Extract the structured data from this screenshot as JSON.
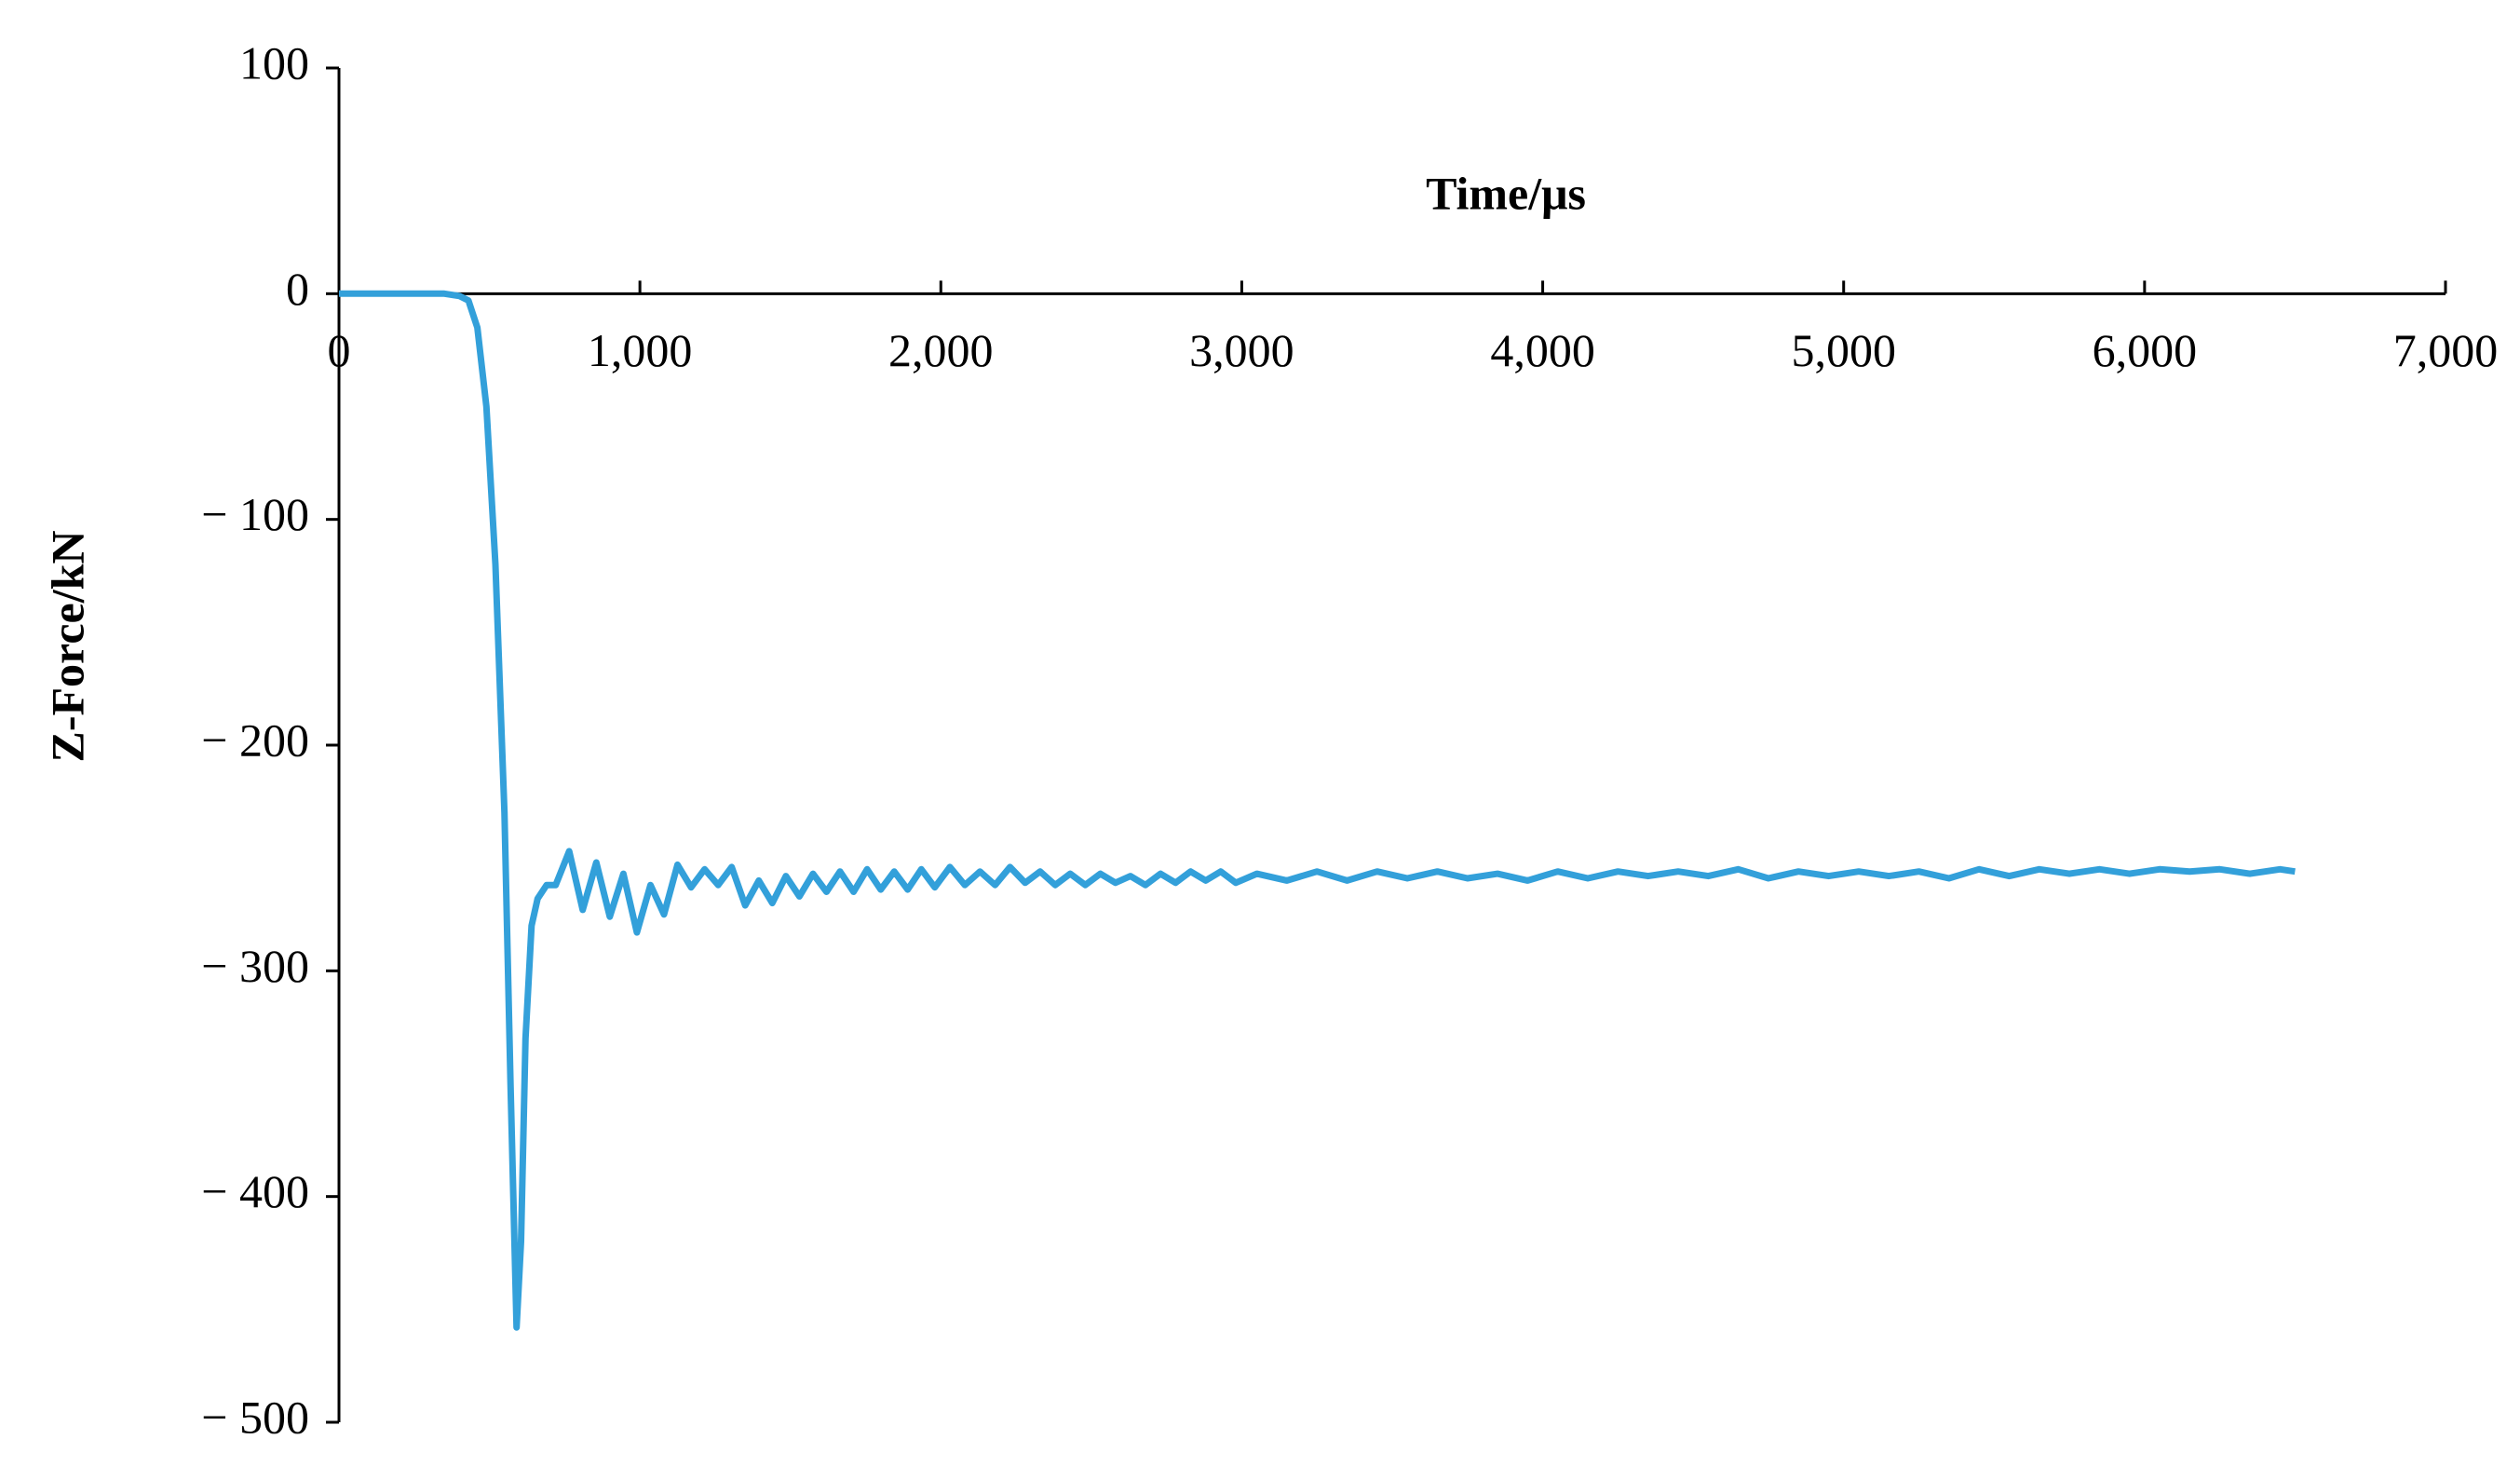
{
  "chart_data": {
    "type": "line",
    "title": "Time/μs",
    "y_label": "Z-Force/kN",
    "color": "#33a0da",
    "xlim": [
      0,
      7000
    ],
    "ylim": [
      -500,
      100
    ],
    "xticks": [
      0,
      {
        "value": 1000,
        "label": "1,000"
      },
      {
        "value": 2000,
        "label": "2,000"
      },
      {
        "value": 3000,
        "label": "3,000"
      },
      {
        "value": 4000,
        "label": "4,000"
      },
      {
        "value": 5000,
        "label": "5,000"
      },
      {
        "value": 6000,
        "label": "6,000"
      },
      {
        "value": 7000,
        "label": "7,000"
      }
    ],
    "yticks": [
      100,
      0,
      {
        "value": -100,
        "label": "− 100"
      },
      {
        "value": -200,
        "label": "− 200"
      },
      {
        "value": -300,
        "label": "− 300"
      },
      {
        "value": -400,
        "label": "− 400"
      },
      {
        "value": -500,
        "label": "− 500"
      }
    ],
    "x": [
      0,
      100,
      200,
      300,
      350,
      400,
      430,
      460,
      490,
      520,
      550,
      570,
      590,
      605,
      620,
      640,
      660,
      690,
      720,
      765,
      810,
      855,
      900,
      945,
      990,
      1035,
      1080,
      1125,
      1170,
      1215,
      1260,
      1305,
      1350,
      1395,
      1440,
      1485,
      1530,
      1575,
      1620,
      1665,
      1710,
      1755,
      1800,
      1845,
      1890,
      1935,
      1980,
      2030,
      2080,
      2130,
      2180,
      2230,
      2280,
      2330,
      2380,
      2430,
      2480,
      2530,
      2580,
      2630,
      2680,
      2730,
      2780,
      2830,
      2880,
      2930,
      2980,
      3050,
      3150,
      3250,
      3350,
      3450,
      3550,
      3650,
      3750,
      3850,
      3950,
      4050,
      4150,
      4250,
      4350,
      4450,
      4550,
      4650,
      4750,
      4850,
      4950,
      5050,
      5150,
      5250,
      5350,
      5450,
      5550,
      5650,
      5750,
      5850,
      5950,
      6050,
      6150,
      6250,
      6350,
      6450,
      6500
    ],
    "values": [
      0,
      0,
      0,
      0,
      0,
      -1,
      -3,
      -15,
      -50,
      -120,
      -230,
      -350,
      -458,
      -420,
      -330,
      -280,
      -268,
      -262,
      -262,
      -247,
      -273,
      -252,
      -276,
      -257,
      -283,
      -262,
      -275,
      -253,
      -263,
      -255,
      -262,
      -254,
      -271,
      -260,
      -270,
      -258,
      -267,
      -257,
      -265,
      -256,
      -265,
      -255,
      -264,
      -256,
      -264,
      -255,
      -263,
      -254,
      -262,
      -256,
      -262,
      -254,
      -261,
      -256,
      -262,
      -257,
      -262,
      -257,
      -261,
      -258,
      -262,
      -257,
      -261,
      -256,
      -260,
      -256,
      -261,
      -257,
      -260,
      -256,
      -260,
      -256,
      -259,
      -256,
      -259,
      -257,
      -260,
      -256,
      -259,
      -256,
      -258,
      -256,
      -258,
      -255,
      -259,
      -256,
      -258,
      -256,
      -258,
      -256,
      -259,
      -255,
      -258,
      -255,
      -257,
      -255,
      -257,
      -255,
      -256,
      -255,
      -257,
      -255,
      -256
    ]
  }
}
